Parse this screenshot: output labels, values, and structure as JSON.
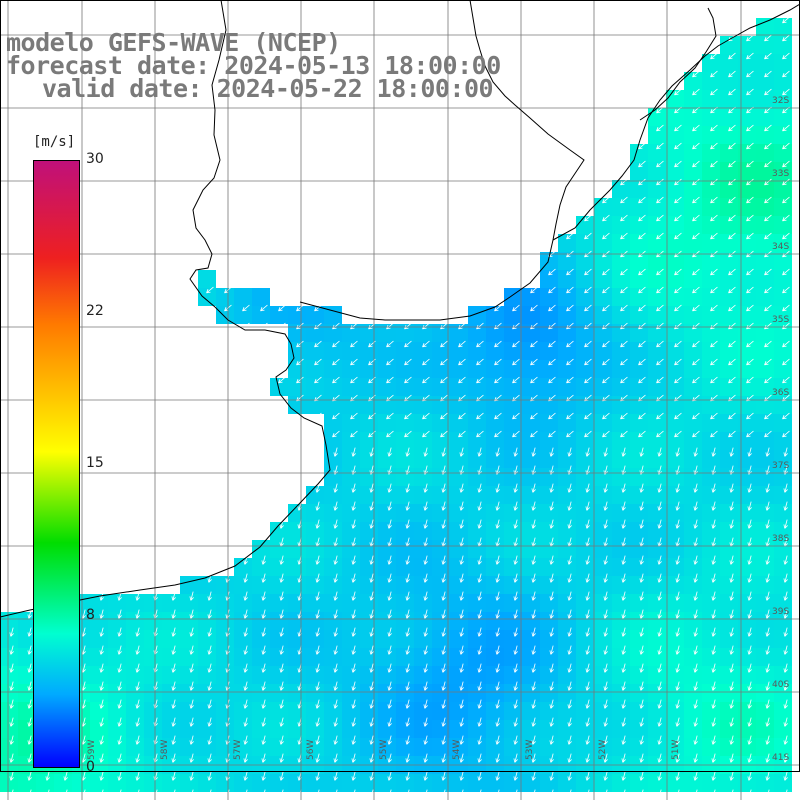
{
  "title": {
    "line1": "modelo GEFS-WAVE (NCEP)",
    "line2": "forecast date: 2024-05-13 18:00:00",
    "line3": "valid date: 2024-05-22 18:00:00"
  },
  "colorbar": {
    "units": "[m/s]",
    "ticks": [
      "30",
      "22",
      "15",
      "8",
      "0"
    ],
    "min": 0,
    "max": 30,
    "colors": [
      "#0000ff",
      "#00aaff",
      "#00ffd0",
      "#00dd00",
      "#ffff00",
      "#ff7a00",
      "#ee2020",
      "#c0107a"
    ]
  },
  "map": {
    "lat_labels": [
      "32S",
      "33S",
      "34S",
      "35S",
      "36S",
      "37S",
      "38S",
      "39S",
      "40S",
      "41S"
    ],
    "lon_labels": [
      "59W",
      "58W",
      "57W",
      "56W",
      "55W",
      "54W",
      "53W",
      "52W",
      "51W"
    ],
    "field": "wind speed (m/s) with direction arrows",
    "prevailing_direction": "southwest"
  }
}
